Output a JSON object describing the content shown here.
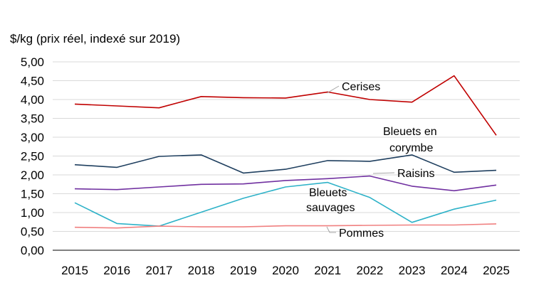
{
  "chart_data": {
    "type": "line",
    "ylabel": "$/kg (prix réel, indexé sur 2019)",
    "categories": [
      "2015",
      "2016",
      "2017",
      "2018",
      "2019",
      "2020",
      "2021",
      "2022",
      "2023",
      "2024",
      "2025"
    ],
    "y_ticks": [
      "0,00",
      "0,50",
      "1,00",
      "1,50",
      "2,00",
      "2,50",
      "3,00",
      "3,50",
      "4,00",
      "4,50",
      "5,00"
    ],
    "ylim": [
      0,
      5
    ],
    "grid": true,
    "legend": "none",
    "series": [
      {
        "name": "Cerises",
        "color": "#c00000",
        "values": [
          3.88,
          3.83,
          3.78,
          4.08,
          4.05,
          4.04,
          4.2,
          4.0,
          3.93,
          4.63,
          3.05
        ]
      },
      {
        "name": "Bleuets en corymbe",
        "color": "#1f3f5f",
        "values": [
          2.27,
          2.2,
          2.49,
          2.53,
          2.05,
          2.15,
          2.38,
          2.36,
          2.53,
          2.07,
          2.12
        ]
      },
      {
        "name": "Raisins",
        "color": "#7030a0",
        "values": [
          1.63,
          1.61,
          1.68,
          1.75,
          1.76,
          1.85,
          1.9,
          1.97,
          1.7,
          1.58,
          1.73
        ]
      },
      {
        "name": "Bleuets sauvages",
        "color": "#2eb2c8",
        "values": [
          1.26,
          0.71,
          0.64,
          1.01,
          1.38,
          1.68,
          1.8,
          1.4,
          0.74,
          1.09,
          1.33
        ]
      },
      {
        "name": "Pommes",
        "color": "#f08080",
        "values": [
          0.61,
          0.59,
          0.64,
          0.62,
          0.62,
          0.65,
          0.65,
          0.66,
          0.67,
          0.67,
          0.7
        ]
      }
    ],
    "annotations": {
      "cerises": "Cerises",
      "corymbe_line1": "Bleuets en",
      "corymbe_line2": "corymbe",
      "raisins": "Raisins",
      "sauvages_line1": "Bleuets",
      "sauvages_line2": "sauvages",
      "pommes": "Pommes"
    }
  }
}
